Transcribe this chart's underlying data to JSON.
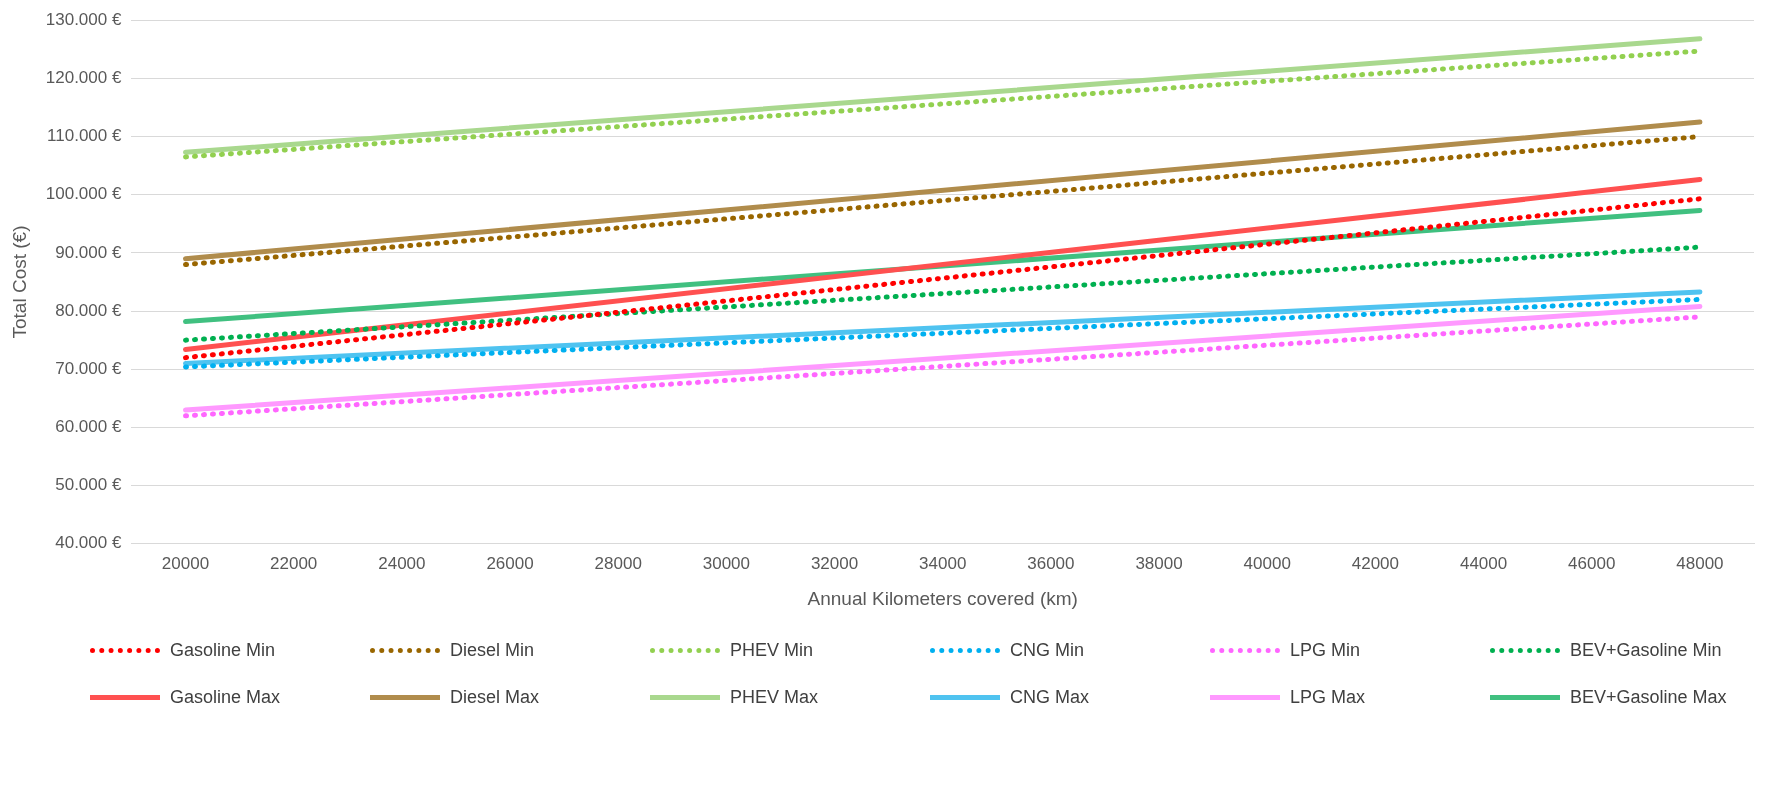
{
  "chart_data": {
    "type": "line",
    "xlabel": "Annual Kilometers covered (km)",
    "ylabel": "Total Cost (€)",
    "x": [
      20000,
      48000
    ],
    "xlim": [
      19000,
      49000
    ],
    "xticks": [
      20000,
      22000,
      24000,
      26000,
      28000,
      30000,
      32000,
      34000,
      36000,
      38000,
      40000,
      42000,
      44000,
      46000,
      48000
    ],
    "ylim": [
      40000,
      130000
    ],
    "yticks": [
      {
        "value": 40000,
        "label": "40.000 €"
      },
      {
        "value": 50000,
        "label": "50.000 €"
      },
      {
        "value": 60000,
        "label": "60.000 €"
      },
      {
        "value": 70000,
        "label": "70.000 €"
      },
      {
        "value": 80000,
        "label": "80.000 €"
      },
      {
        "value": 90000,
        "label": "90.000 €"
      },
      {
        "value": 100000,
        "label": "100.000 €"
      },
      {
        "value": 110000,
        "label": "110.000 €"
      },
      {
        "value": 120000,
        "label": "120.000 €"
      },
      {
        "value": 130000,
        "label": "130.000 €"
      }
    ],
    "grid": "y",
    "legend": "bottom",
    "marker": "none",
    "series": [
      {
        "name": "Gasoline Min",
        "color": "#ff0000",
        "line_style": "dotted",
        "values": [
          72000,
          99300
        ]
      },
      {
        "name": "Diesel Min",
        "color": "#996600",
        "line_style": "dotted",
        "values": [
          88000,
          110000
        ]
      },
      {
        "name": "PHEV Min",
        "color": "#92d050",
        "line_style": "dotted",
        "values": [
          106500,
          124700
        ]
      },
      {
        "name": "CNG Min",
        "color": "#00b0f0",
        "line_style": "dotted",
        "values": [
          70400,
          82000
        ]
      },
      {
        "name": "LPG Min",
        "color": "#ff66ff",
        "line_style": "dotted",
        "values": [
          62000,
          79000
        ]
      },
      {
        "name": "BEV+Gasoline Min",
        "color": "#00b050",
        "line_style": "dotted",
        "values": [
          75000,
          91000
        ]
      },
      {
        "name": "Gasoline Max",
        "color": "#ff5050",
        "line_style": "solid",
        "values": [
          73400,
          102600
        ]
      },
      {
        "name": "Diesel Max",
        "color": "#b08c4c",
        "line_style": "solid",
        "values": [
          89000,
          112500
        ]
      },
      {
        "name": "PHEV Max",
        "color": "#a9d88e",
        "line_style": "solid",
        "values": [
          107300,
          126800
        ]
      },
      {
        "name": "CNG Max",
        "color": "#4fc3f0",
        "line_style": "solid",
        "values": [
          71000,
          83300
        ]
      },
      {
        "name": "LPG Max",
        "color": "#ff99ff",
        "line_style": "solid",
        "values": [
          63000,
          80800
        ]
      },
      {
        "name": "BEV+Gasoline Max",
        "color": "#40c080",
        "line_style": "solid",
        "values": [
          78200,
          97300
        ]
      }
    ]
  }
}
